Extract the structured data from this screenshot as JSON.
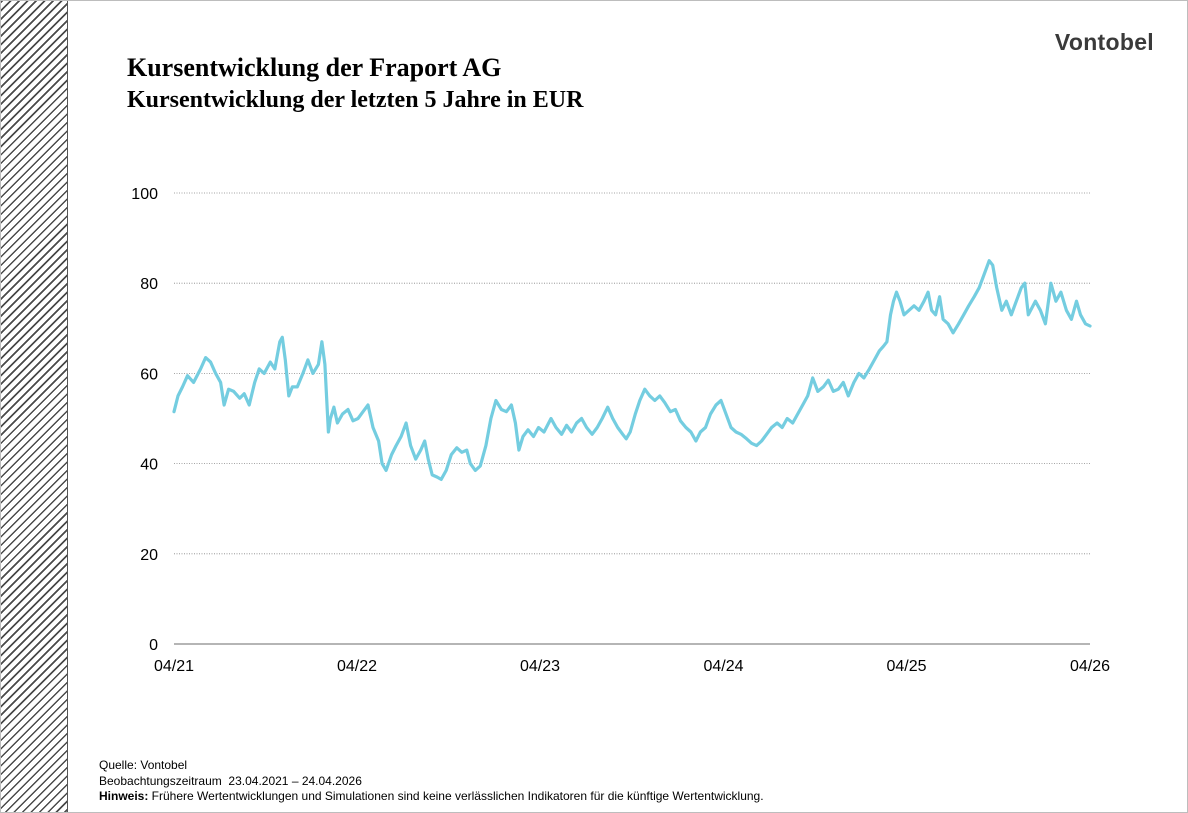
{
  "title": "Kursentwicklung der Fraport AG",
  "subtitle": "Kursentwicklung der letzten 5 Jahre in EUR",
  "logo_text": "Vontobel",
  "footer": {
    "source": "Quelle: Vontobel",
    "period_label": "Beobachtungszeitraum",
    "period_value": "23.04.2021 – 24.04.2026",
    "note_label": "Hinweis:",
    "note_text": " Frühere Wertentwicklungen und Simulationen sind keine verlässlichen Indikatoren für die künftige Wertentwicklung."
  },
  "colors": {
    "line": "#74cde0",
    "grid": "#888888",
    "text": "#000000"
  },
  "chart_data": {
    "type": "line",
    "title": "Kursentwicklung der Fraport AG",
    "subtitle": "Kursentwicklung der letzten 5 Jahre in EUR",
    "xlabel": "",
    "ylabel": "",
    "ylim": [
      0,
      100
    ],
    "yticks": [
      0,
      20,
      40,
      60,
      80,
      100
    ],
    "xlim": [
      "2021-04-23",
      "2026-04-24"
    ],
    "xticks": [
      {
        "label": "04/21",
        "date": "2021-04-23"
      },
      {
        "label": "04/22",
        "date": "2022-04-23"
      },
      {
        "label": "04/23",
        "date": "2023-04-23"
      },
      {
        "label": "04/24",
        "date": "2024-04-23"
      },
      {
        "label": "04/25",
        "date": "2025-04-23"
      },
      {
        "label": "04/26",
        "date": "2026-04-24"
      }
    ],
    "grid": "horizontal dotted",
    "legend": "none",
    "series": [
      {
        "values": [
          {
            "x": "2021-04-23",
            "y": 51.5
          },
          {
            "x": "2021-05-01",
            "y": 55
          },
          {
            "x": "2021-05-10",
            "y": 57
          },
          {
            "x": "2021-05-20",
            "y": 59.5
          },
          {
            "x": "2021-06-01",
            "y": 58
          },
          {
            "x": "2021-06-15",
            "y": 61
          },
          {
            "x": "2021-06-25",
            "y": 63.5
          },
          {
            "x": "2021-07-05",
            "y": 62.5
          },
          {
            "x": "2021-07-15",
            "y": 60
          },
          {
            "x": "2021-07-25",
            "y": 58
          },
          {
            "x": "2021-08-01",
            "y": 53
          },
          {
            "x": "2021-08-10",
            "y": 56.5
          },
          {
            "x": "2021-08-20",
            "y": 56
          },
          {
            "x": "2021-09-01",
            "y": 54.5
          },
          {
            "x": "2021-09-10",
            "y": 55.5
          },
          {
            "x": "2021-09-20",
            "y": 53
          },
          {
            "x": "2021-10-01",
            "y": 58
          },
          {
            "x": "2021-10-10",
            "y": 61
          },
          {
            "x": "2021-10-20",
            "y": 60
          },
          {
            "x": "2021-11-01",
            "y": 62.5
          },
          {
            "x": "2021-11-10",
            "y": 61
          },
          {
            "x": "2021-11-20",
            "y": 67
          },
          {
            "x": "2021-11-25",
            "y": 68
          },
          {
            "x": "2021-12-01",
            "y": 63
          },
          {
            "x": "2021-12-08",
            "y": 55
          },
          {
            "x": "2021-12-15",
            "y": 57
          },
          {
            "x": "2021-12-25",
            "y": 57
          },
          {
            "x": "2022-01-05",
            "y": 60
          },
          {
            "x": "2022-01-15",
            "y": 63
          },
          {
            "x": "2022-01-25",
            "y": 60
          },
          {
            "x": "2022-02-05",
            "y": 62
          },
          {
            "x": "2022-02-12",
            "y": 67
          },
          {
            "x": "2022-02-18",
            "y": 62
          },
          {
            "x": "2022-02-25",
            "y": 47
          },
          {
            "x": "2022-03-01",
            "y": 50
          },
          {
            "x": "2022-03-08",
            "y": 52.5
          },
          {
            "x": "2022-03-15",
            "y": 49
          },
          {
            "x": "2022-03-25",
            "y": 51
          },
          {
            "x": "2022-04-05",
            "y": 52
          },
          {
            "x": "2022-04-15",
            "y": 49.5
          },
          {
            "x": "2022-04-25",
            "y": 50
          },
          {
            "x": "2022-05-05",
            "y": 51.5
          },
          {
            "x": "2022-05-15",
            "y": 53
          },
          {
            "x": "2022-05-25",
            "y": 48
          },
          {
            "x": "2022-06-05",
            "y": 45
          },
          {
            "x": "2022-06-12",
            "y": 40
          },
          {
            "x": "2022-06-20",
            "y": 38.5
          },
          {
            "x": "2022-07-01",
            "y": 42
          },
          {
            "x": "2022-07-10",
            "y": 44
          },
          {
            "x": "2022-07-20",
            "y": 46
          },
          {
            "x": "2022-07-30",
            "y": 49
          },
          {
            "x": "2022-08-08",
            "y": 44
          },
          {
            "x": "2022-08-18",
            "y": 41
          },
          {
            "x": "2022-08-28",
            "y": 43
          },
          {
            "x": "2022-09-05",
            "y": 45
          },
          {
            "x": "2022-09-12",
            "y": 41
          },
          {
            "x": "2022-09-20",
            "y": 37.5
          },
          {
            "x": "2022-09-30",
            "y": 37
          },
          {
            "x": "2022-10-08",
            "y": 36.5
          },
          {
            "x": "2022-10-18",
            "y": 38.5
          },
          {
            "x": "2022-10-28",
            "y": 42
          },
          {
            "x": "2022-11-08",
            "y": 43.5
          },
          {
            "x": "2022-11-18",
            "y": 42.5
          },
          {
            "x": "2022-11-28",
            "y": 43
          },
          {
            "x": "2022-12-05",
            "y": 40
          },
          {
            "x": "2022-12-15",
            "y": 38.5
          },
          {
            "x": "2022-12-25",
            "y": 39.5
          },
          {
            "x": "2023-01-05",
            "y": 44
          },
          {
            "x": "2023-01-15",
            "y": 50
          },
          {
            "x": "2023-01-25",
            "y": 54
          },
          {
            "x": "2023-02-05",
            "y": 52
          },
          {
            "x": "2023-02-15",
            "y": 51.5
          },
          {
            "x": "2023-02-25",
            "y": 53
          },
          {
            "x": "2023-03-05",
            "y": 49
          },
          {
            "x": "2023-03-12",
            "y": 43
          },
          {
            "x": "2023-03-20",
            "y": 46
          },
          {
            "x": "2023-03-30",
            "y": 47.5
          },
          {
            "x": "2023-04-10",
            "y": 46
          },
          {
            "x": "2023-04-20",
            "y": 48
          },
          {
            "x": "2023-05-01",
            "y": 47
          },
          {
            "x": "2023-05-15",
            "y": 50
          },
          {
            "x": "2023-05-25",
            "y": 48
          },
          {
            "x": "2023-06-05",
            "y": 46.5
          },
          {
            "x": "2023-06-15",
            "y": 48.5
          },
          {
            "x": "2023-06-25",
            "y": 47
          },
          {
            "x": "2023-07-05",
            "y": 49
          },
          {
            "x": "2023-07-15",
            "y": 50
          },
          {
            "x": "2023-07-25",
            "y": 48
          },
          {
            "x": "2023-08-05",
            "y": 46.5
          },
          {
            "x": "2023-08-15",
            "y": 48
          },
          {
            "x": "2023-08-25",
            "y": 50
          },
          {
            "x": "2023-09-05",
            "y": 52.5
          },
          {
            "x": "2023-09-15",
            "y": 50
          },
          {
            "x": "2023-09-25",
            "y": 48
          },
          {
            "x": "2023-10-05",
            "y": 46.5
          },
          {
            "x": "2023-10-12",
            "y": 45.5
          },
          {
            "x": "2023-10-20",
            "y": 47
          },
          {
            "x": "2023-10-30",
            "y": 51
          },
          {
            "x": "2023-11-08",
            "y": 54
          },
          {
            "x": "2023-11-18",
            "y": 56.5
          },
          {
            "x": "2023-11-28",
            "y": 55
          },
          {
            "x": "2023-12-08",
            "y": 54
          },
          {
            "x": "2023-12-18",
            "y": 55
          },
          {
            "x": "2023-12-28",
            "y": 53.5
          },
          {
            "x": "2024-01-08",
            "y": 51.5
          },
          {
            "x": "2024-01-18",
            "y": 52
          },
          {
            "x": "2024-01-28",
            "y": 49.5
          },
          {
            "x": "2024-02-08",
            "y": 48
          },
          {
            "x": "2024-02-18",
            "y": 47
          },
          {
            "x": "2024-02-28",
            "y": 45
          },
          {
            "x": "2024-03-08",
            "y": 47
          },
          {
            "x": "2024-03-18",
            "y": 48
          },
          {
            "x": "2024-03-28",
            "y": 51
          },
          {
            "x": "2024-04-08",
            "y": 53
          },
          {
            "x": "2024-04-18",
            "y": 54
          },
          {
            "x": "2024-04-28",
            "y": 51
          },
          {
            "x": "2024-05-08",
            "y": 48
          },
          {
            "x": "2024-05-18",
            "y": 47
          },
          {
            "x": "2024-05-28",
            "y": 46.5
          },
          {
            "x": "2024-06-08",
            "y": 45.5
          },
          {
            "x": "2024-06-18",
            "y": 44.5
          },
          {
            "x": "2024-06-28",
            "y": 44
          },
          {
            "x": "2024-07-08",
            "y": 45
          },
          {
            "x": "2024-07-18",
            "y": 46.5
          },
          {
            "x": "2024-07-28",
            "y": 48
          },
          {
            "x": "2024-08-08",
            "y": 49
          },
          {
            "x": "2024-08-18",
            "y": 48
          },
          {
            "x": "2024-08-28",
            "y": 50
          },
          {
            "x": "2024-09-08",
            "y": 49
          },
          {
            "x": "2024-09-18",
            "y": 51
          },
          {
            "x": "2024-09-28",
            "y": 53
          },
          {
            "x": "2024-10-08",
            "y": 55
          },
          {
            "x": "2024-10-18",
            "y": 59
          },
          {
            "x": "2024-10-28",
            "y": 56
          },
          {
            "x": "2024-11-08",
            "y": 57
          },
          {
            "x": "2024-11-18",
            "y": 58.5
          },
          {
            "x": "2024-11-28",
            "y": 56
          },
          {
            "x": "2024-12-08",
            "y": 56.5
          },
          {
            "x": "2024-12-18",
            "y": 58
          },
          {
            "x": "2024-12-28",
            "y": 55
          },
          {
            "x": "2025-01-08",
            "y": 58
          },
          {
            "x": "2025-01-18",
            "y": 60
          },
          {
            "x": "2025-01-28",
            "y": 59
          },
          {
            "x": "2025-02-08",
            "y": 61
          },
          {
            "x": "2025-02-18",
            "y": 63
          },
          {
            "x": "2025-02-28",
            "y": 65
          },
          {
            "x": "2025-03-08",
            "y": 66
          },
          {
            "x": "2025-03-15",
            "y": 67
          },
          {
            "x": "2025-03-22",
            "y": 73
          },
          {
            "x": "2025-03-28",
            "y": 76
          },
          {
            "x": "2025-04-03",
            "y": 78
          },
          {
            "x": "2025-04-10",
            "y": 76
          },
          {
            "x": "2025-04-18",
            "y": 73
          },
          {
            "x": "2025-04-28",
            "y": 74
          },
          {
            "x": "2025-05-08",
            "y": 75
          },
          {
            "x": "2025-05-18",
            "y": 74
          },
          {
            "x": "2025-05-28",
            "y": 76
          },
          {
            "x": "2025-06-05",
            "y": 78
          },
          {
            "x": "2025-06-12",
            "y": 74
          },
          {
            "x": "2025-06-20",
            "y": 73
          },
          {
            "x": "2025-06-28",
            "y": 77
          },
          {
            "x": "2025-07-05",
            "y": 72
          },
          {
            "x": "2025-07-15",
            "y": 71
          },
          {
            "x": "2025-07-25",
            "y": 69
          },
          {
            "x": "2025-08-05",
            "y": 71
          },
          {
            "x": "2025-08-15",
            "y": 73
          },
          {
            "x": "2025-08-25",
            "y": 75
          },
          {
            "x": "2025-09-05",
            "y": 77
          },
          {
            "x": "2025-09-15",
            "y": 79
          },
          {
            "x": "2025-09-25",
            "y": 82
          },
          {
            "x": "2025-10-05",
            "y": 85
          },
          {
            "x": "2025-10-12",
            "y": 84
          },
          {
            "x": "2025-10-20",
            "y": 79
          },
          {
            "x": "2025-10-30",
            "y": 74
          },
          {
            "x": "2025-11-08",
            "y": 76
          },
          {
            "x": "2025-11-18",
            "y": 73
          },
          {
            "x": "2025-11-28",
            "y": 76
          },
          {
            "x": "2025-12-08",
            "y": 79
          },
          {
            "x": "2025-12-15",
            "y": 80
          },
          {
            "x": "2025-12-22",
            "y": 73
          },
          {
            "x": "2026-01-05",
            "y": 76
          },
          {
            "x": "2026-01-15",
            "y": 74
          },
          {
            "x": "2026-01-25",
            "y": 71
          },
          {
            "x": "2026-02-05",
            "y": 80
          },
          {
            "x": "2026-02-15",
            "y": 76
          },
          {
            "x": "2026-02-25",
            "y": 78
          },
          {
            "x": "2026-03-08",
            "y": 74
          },
          {
            "x": "2026-03-18",
            "y": 72
          },
          {
            "x": "2026-03-28",
            "y": 76
          },
          {
            "x": "2026-04-05",
            "y": 73
          },
          {
            "x": "2026-04-15",
            "y": 71
          },
          {
            "x": "2026-04-24",
            "y": 70.5
          }
        ]
      }
    ]
  }
}
